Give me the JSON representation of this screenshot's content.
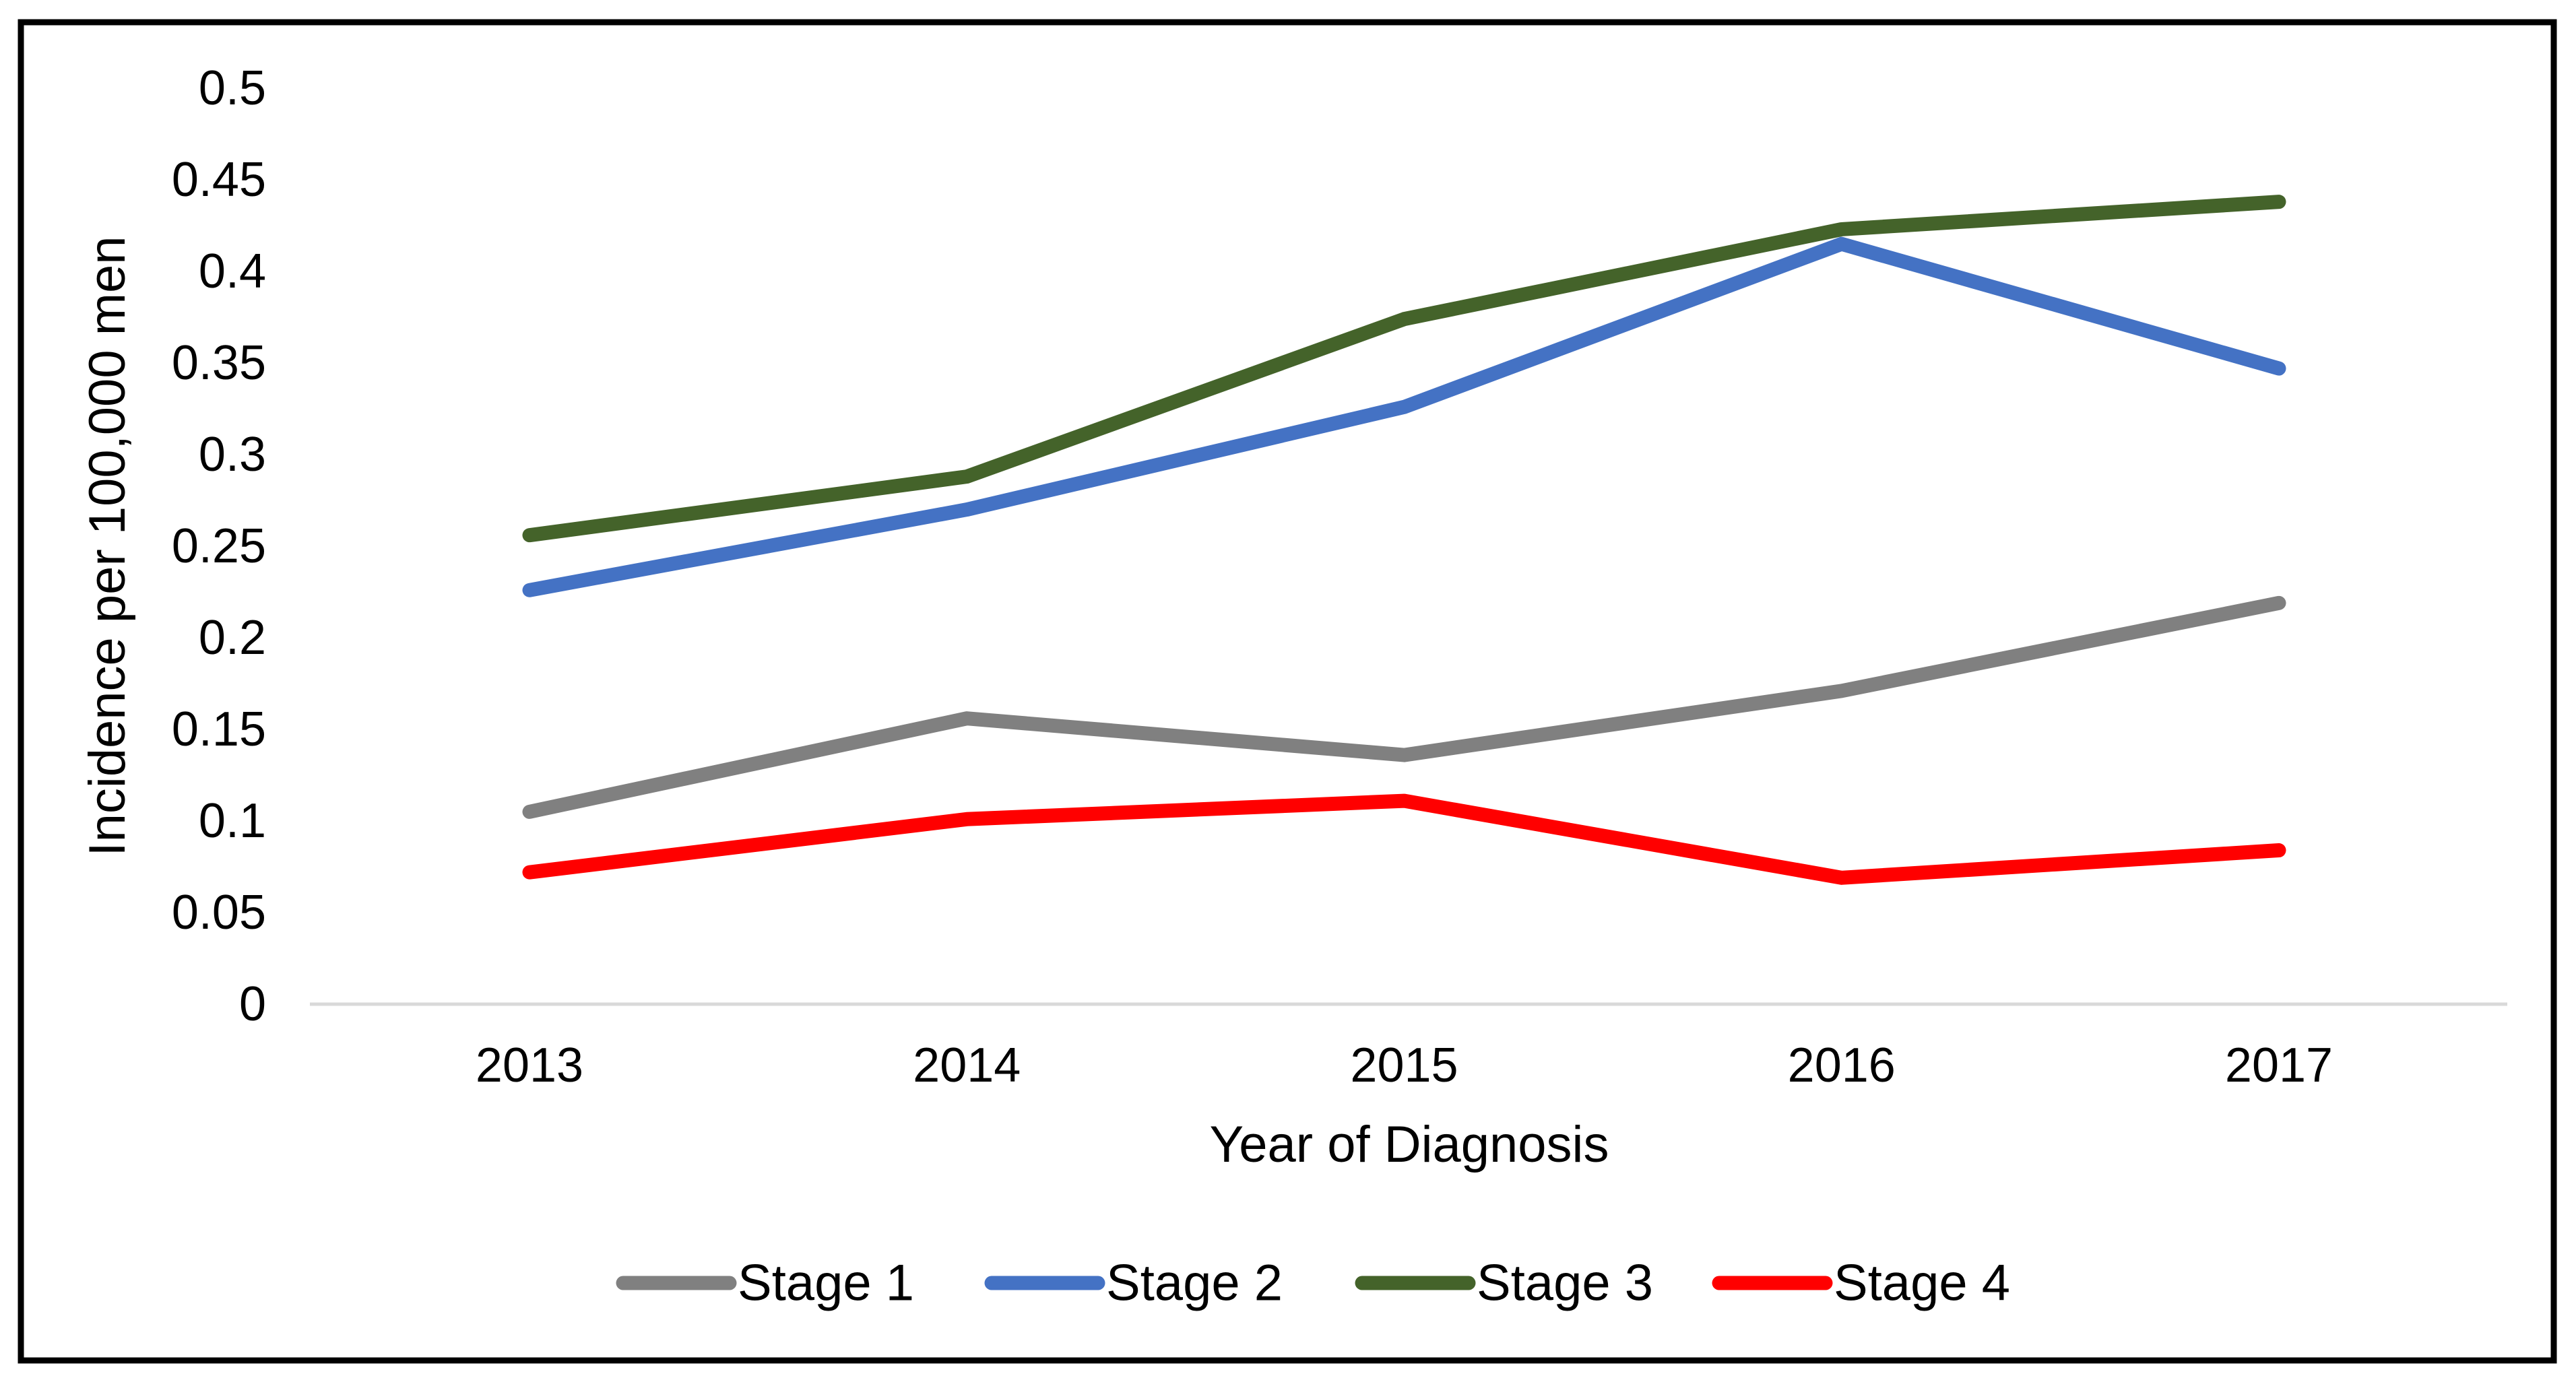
{
  "chart_data": {
    "type": "line",
    "x": [
      2013,
      2014,
      2015,
      2016,
      2017
    ],
    "x_tick_labels": [
      "2013",
      "2014",
      "2015",
      "2016",
      "2017"
    ],
    "y_tick_labels": [
      "0",
      "0.05",
      "0.1",
      "0.15",
      "0.2",
      "0.25",
      "0.3",
      "0.35",
      "0.4",
      "0.45",
      "0.5"
    ],
    "y_tick_values": [
      0,
      0.05,
      0.1,
      0.15,
      0.2,
      0.25,
      0.3,
      0.35,
      0.4,
      0.45,
      0.5
    ],
    "series": [
      {
        "name": "Stage 1",
        "color": "#808080",
        "values": [
          0.105,
          0.156,
          0.136,
          0.171,
          0.219
        ]
      },
      {
        "name": "Stage 2",
        "color": "#4472C4",
        "values": [
          0.226,
          0.27,
          0.326,
          0.415,
          0.347
        ]
      },
      {
        "name": "Stage 3",
        "color": "#44632A",
        "values": [
          0.256,
          0.288,
          0.374,
          0.423,
          0.438
        ]
      },
      {
        "name": "Stage 4",
        "color": "#FF0000",
        "values": [
          0.072,
          0.101,
          0.111,
          0.069,
          0.084
        ]
      }
    ],
    "title": "",
    "xlabel": "Year of Diagnosis",
    "ylabel": "Incidence per 100,000 men",
    "ylim": [
      0,
      0.5
    ],
    "ytick_step": 0.05,
    "grid": "none",
    "legend_position": "bottom",
    "axis_line_color": "#D9D9D9",
    "border_color": "#000000"
  }
}
